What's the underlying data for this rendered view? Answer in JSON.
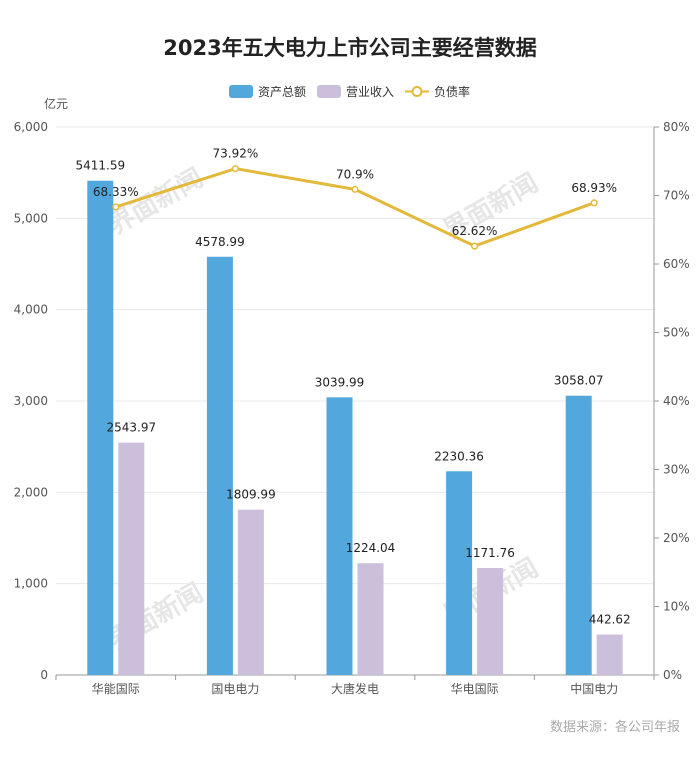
{
  "chart_data": {
    "type": "bar",
    "title": "2023年五大电力上市公司主要经营数据",
    "categories": [
      "华能国际",
      "国电电力",
      "大唐发电",
      "华电国际",
      "中国电力"
    ],
    "ylabel": "亿元",
    "ylim": [
      0,
      6000
    ],
    "yticks": [
      "0",
      "1,000",
      "2,000",
      "3,000",
      "4,000",
      "5,000",
      "6,000"
    ],
    "y2lim": [
      0,
      80
    ],
    "y2ticks": [
      "0%",
      "10%",
      "20%",
      "30%",
      "40%",
      "50%",
      "60%",
      "70%",
      "80%"
    ],
    "series": [
      {
        "name": "资产总额",
        "kind": "bar",
        "axis": "left",
        "color": "#52a8dd",
        "values": [
          5411.59,
          4578.99,
          3039.99,
          2230.36,
          3058.07
        ],
        "labels": [
          "5411.59",
          "4578.99",
          "3039.99",
          "2230.36",
          "3058.07"
        ]
      },
      {
        "name": "营业收入",
        "kind": "bar",
        "axis": "left",
        "color": "#cbbfdb",
        "values": [
          2543.97,
          1809.99,
          1224.04,
          1171.76,
          442.62
        ],
        "labels": [
          "2543.97",
          "1809.99",
          "1224.04",
          "1171.76",
          "442.62"
        ]
      },
      {
        "name": "负债率",
        "kind": "line",
        "axis": "right",
        "color": "#e2b93b",
        "values": [
          68.33,
          73.92,
          70.9,
          62.62,
          68.93
        ],
        "labels": [
          "68.33%",
          "73.92%",
          "70.9%",
          "62.62%",
          "68.93%"
        ]
      }
    ],
    "grid": true,
    "legend": "top-center"
  },
  "source": "数据来源：各公司年报",
  "watermark": "界面新闻"
}
